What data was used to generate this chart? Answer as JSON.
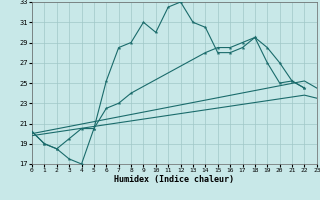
{
  "xlabel": "Humidex (Indice chaleur)",
  "xlim": [
    0,
    23
  ],
  "ylim": [
    17,
    33
  ],
  "xticks": [
    0,
    1,
    2,
    3,
    4,
    5,
    6,
    7,
    8,
    9,
    10,
    11,
    12,
    13,
    14,
    15,
    16,
    17,
    18,
    19,
    20,
    21,
    22,
    23
  ],
  "yticks": [
    17,
    19,
    21,
    23,
    25,
    27,
    29,
    31,
    33
  ],
  "bg_color": "#c8e8e8",
  "grid_color": "#a0c8c8",
  "line_color": "#1a6b6b",
  "curve1_x": [
    0,
    1,
    2,
    3,
    4,
    5,
    6,
    7,
    8,
    9,
    10,
    11,
    12,
    13,
    14,
    15,
    16,
    17,
    18,
    19,
    20,
    21,
    22
  ],
  "curve1_y": [
    20.2,
    19.0,
    18.5,
    17.5,
    17.0,
    20.5,
    25.2,
    28.5,
    29.0,
    31.0,
    30.0,
    32.5,
    33.0,
    31.0,
    30.5,
    28.0,
    28.0,
    28.5,
    29.5,
    28.5,
    27.0,
    25.2,
    24.5
  ],
  "curve2_x": [
    0,
    1,
    2,
    3,
    4,
    5,
    6,
    7,
    8,
    14,
    15,
    16,
    17,
    18,
    19,
    20,
    21,
    22
  ],
  "curve2_y": [
    20.2,
    19.0,
    18.5,
    19.5,
    20.5,
    20.5,
    22.5,
    23.0,
    24.0,
    28.0,
    28.5,
    28.5,
    29.0,
    29.5,
    27.0,
    25.0,
    25.2,
    24.5
  ],
  "line3_x": [
    0,
    22,
    23
  ],
  "line3_y": [
    20.0,
    25.2,
    24.5
  ],
  "line4_x": [
    0,
    22,
    23
  ],
  "line4_y": [
    19.8,
    23.8,
    23.5
  ]
}
